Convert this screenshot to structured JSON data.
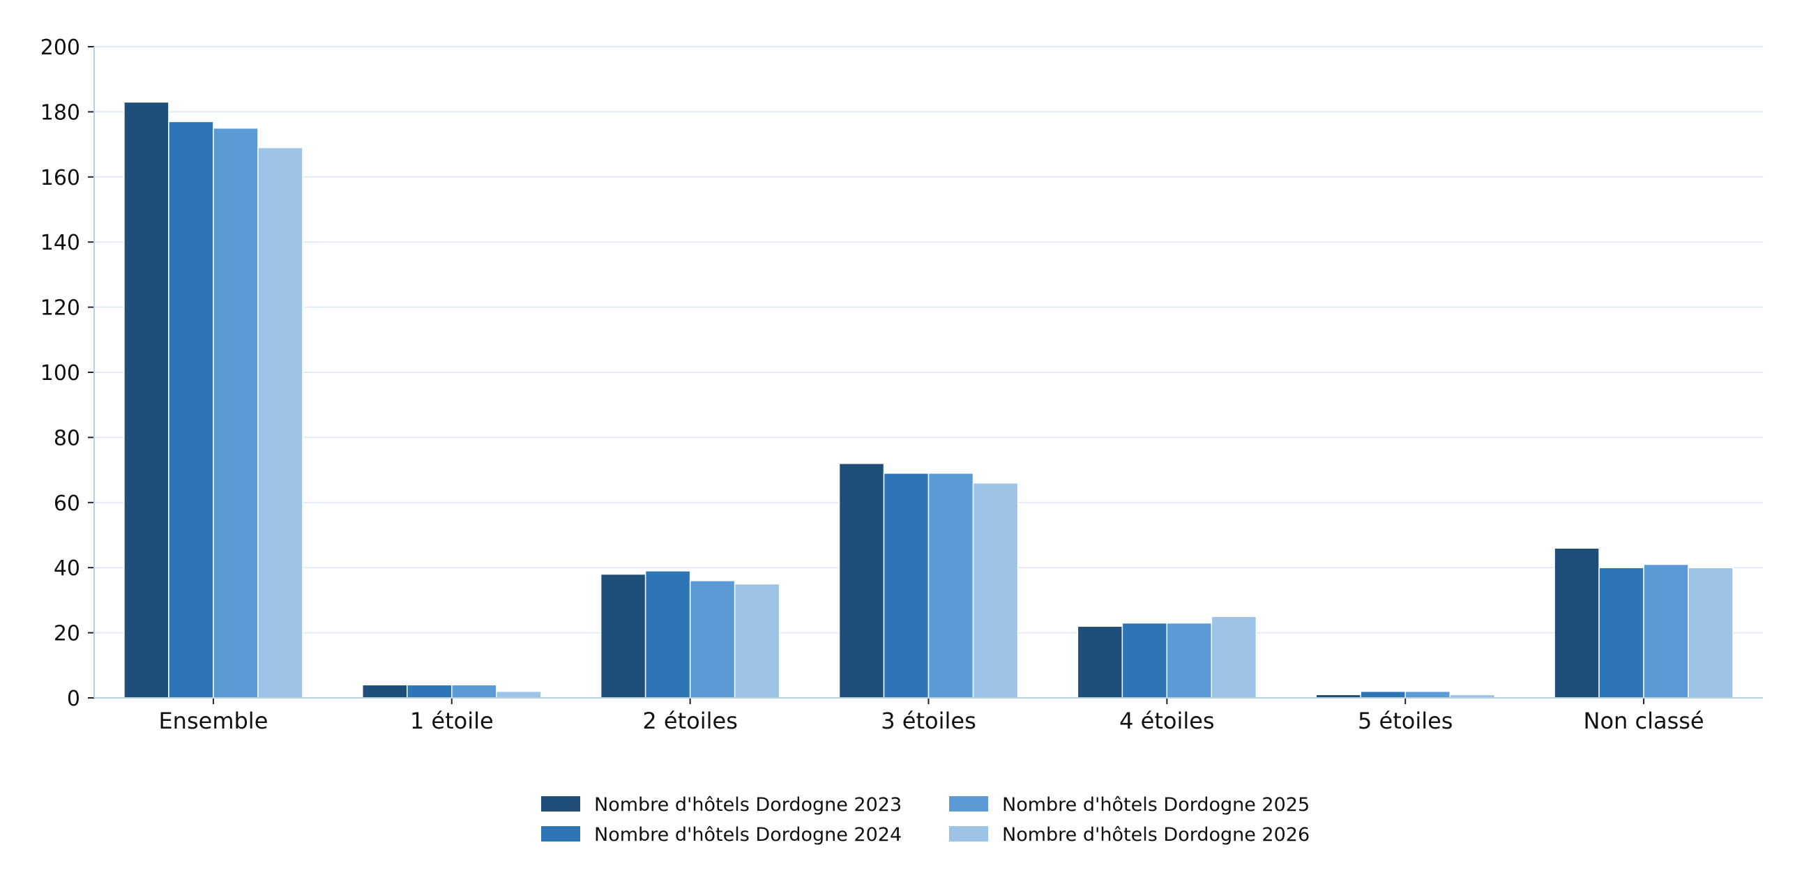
{
  "chart_data": {
    "type": "bar",
    "categories": [
      "Ensemble",
      "1 étoile",
      "2 étoiles",
      "3 étoiles",
      "4 étoiles",
      "5 étoiles",
      "Non classé"
    ],
    "series": [
      {
        "name": "Nombre d'hôtels Dordogne 2023",
        "values": [
          183,
          4,
          38,
          72,
          22,
          1,
          46
        ],
        "color": "#1f4e79"
      },
      {
        "name": "Nombre d'hôtels Dordogne 2024",
        "values": [
          177,
          4,
          39,
          69,
          23,
          2,
          40
        ],
        "color": "#2e75b6"
      },
      {
        "name": "Nombre d'hôtels Dordogne 2025",
        "values": [
          175,
          4,
          36,
          69,
          23,
          2,
          41
        ],
        "color": "#5b9bd5"
      },
      {
        "name": "Nombre d'hôtels Dordogne 2026",
        "values": [
          169,
          2,
          35,
          66,
          25,
          1,
          40
        ],
        "color": "#9dc3e6"
      }
    ],
    "title": "",
    "xlabel": "",
    "ylabel": "",
    "ylim": [
      0,
      200
    ],
    "yticks": [
      "0",
      "20",
      "40",
      "60",
      "80",
      "100",
      "120",
      "140",
      "160",
      "180",
      "200"
    ],
    "grid": true,
    "legend_position": "bottom-center",
    "colors": {
      "gridline": "#e3ecf6",
      "axis": "#b8cfe6"
    }
  }
}
